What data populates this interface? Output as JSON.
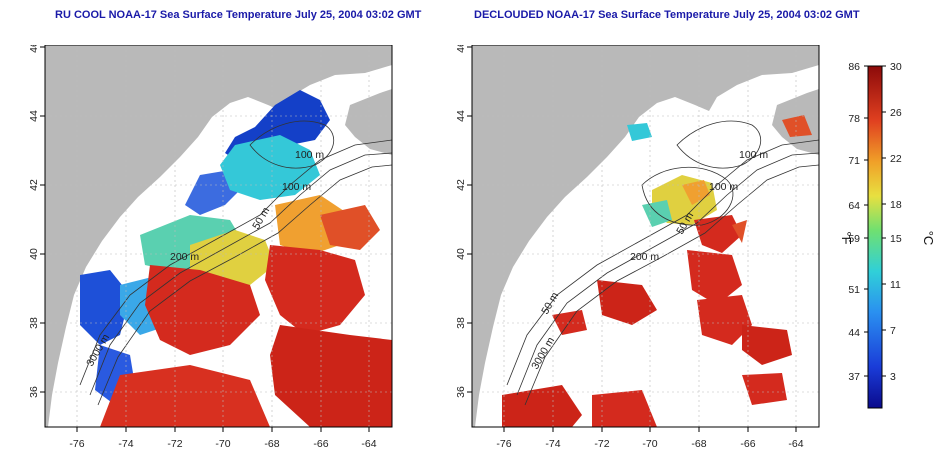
{
  "panels": [
    {
      "title": "RU COOL NOAA-17 Sea Surface Temperature July 25, 2004 03:02 GMT",
      "x_ticks": [
        "-76",
        "-74",
        "-72",
        "-70",
        "-68",
        "-66",
        "-64"
      ],
      "y_ticks": [
        "46",
        "44",
        "42",
        "40",
        "38",
        "36"
      ],
      "contour_labels": [
        "100 m",
        "100 m",
        "50 m",
        "200 m",
        "3000 m"
      ]
    },
    {
      "title": "DECLOUDED NOAA-17 Sea Surface Temperature July 25, 2004 03:02 GMT",
      "x_ticks": [
        "-76",
        "-74",
        "-72",
        "-70",
        "-68",
        "-66",
        "-64"
      ],
      "y_ticks": [
        "46",
        "44",
        "42",
        "40",
        "38",
        "36"
      ],
      "contour_labels": [
        "100 m",
        "100 m",
        "50 m",
        "200 m",
        "50 m",
        "3000 m"
      ]
    }
  ],
  "colorbar": {
    "fahrenheit_ticks": [
      "86",
      "78",
      "71",
      "64",
      "59",
      "51",
      "44",
      "37"
    ],
    "celsius_ticks": [
      "30",
      "26",
      "22",
      "18",
      "15",
      "11",
      "7",
      "3"
    ],
    "fahrenheit_unit": "°F",
    "celsius_unit": "°C"
  },
  "colors": {
    "land": "#b9b9b9",
    "title": "#1a1aa8",
    "warm": "#d42a1e",
    "cold": "#1440c8"
  }
}
